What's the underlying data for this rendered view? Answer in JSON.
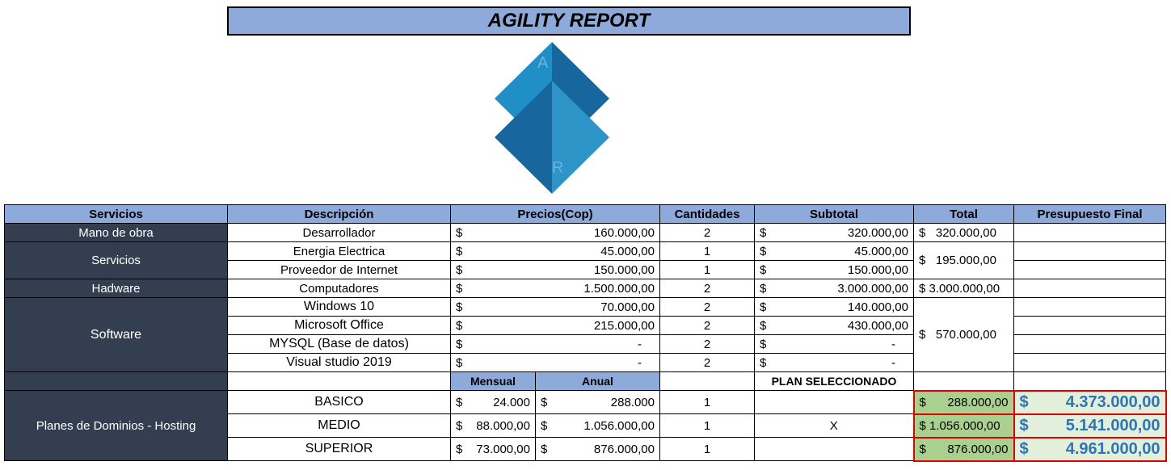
{
  "title": "AGILITY REPORT",
  "logo": {
    "letters": [
      "A",
      "R"
    ],
    "colors": [
      "#1f8fc6",
      "#17669d",
      "#2c94c7"
    ]
  },
  "headers": [
    "Servicios",
    "Descripción",
    "Precios(Cop)",
    "Cantidades",
    "Subtotal",
    "Total",
    "Presupuesto Final"
  ],
  "rows": [
    {
      "desc": "Desarrollador",
      "price": "160.000,00",
      "qty": "2",
      "sub": "320.000,00"
    },
    {
      "desc": "Energia Electrica",
      "price": "45.000,00",
      "qty": "1",
      "sub": "45.000,00"
    },
    {
      "desc": "Proveedor de Internet",
      "price": "150.000,00",
      "qty": "1",
      "sub": "150.000,00"
    },
    {
      "desc": "Computadores",
      "price": "1.500.000,00",
      "qty": "2",
      "sub": "3.000.000,00"
    },
    {
      "desc": "Windows 10",
      "price": "70.000,00",
      "qty": "2",
      "sub": "140.000,00"
    },
    {
      "desc": "Microsoft Office",
      "price": "215.000,00",
      "qty": "2",
      "sub": "430.000,00"
    },
    {
      "desc": "MYSQL (Base de datos)",
      "price": "-",
      "qty": "2",
      "sub": "-"
    },
    {
      "desc": "Visual studio 2019",
      "price": "-",
      "qty": "2",
      "sub": "-"
    }
  ],
  "categories": {
    "mano": "Mano de obra",
    "servicios": "Servicios",
    "hadware": "Hadware",
    "software": "Software",
    "planes": "Planes de Dominios - Hosting"
  },
  "totals": {
    "mano": "320.000,00",
    "servicios": "195.000,00",
    "hadware": "3.000.000,00",
    "software": "570.000,00"
  },
  "currency": "$",
  "plan_headers": {
    "mensual": "Mensual",
    "anual": "Anual",
    "seleccionado": "PLAN SELECCIONADO"
  },
  "plans": [
    {
      "name": "BASICO",
      "mensual": "24.000",
      "anual": "288.000",
      "qty": "1",
      "sel": "",
      "total": "288.000,00",
      "final": "4.373.000,00"
    },
    {
      "name": "MEDIO",
      "mensual": "88.000,00",
      "anual": "1.056.000,00",
      "qty": "1",
      "sel": "X",
      "total": "1.056.000,00",
      "final": "5.141.000,00"
    },
    {
      "name": "SUPERIOR",
      "mensual": "73.000,00",
      "anual": "876.000,00",
      "qty": "1",
      "sel": "",
      "total": "876.000,00",
      "final": "4.961.000,00"
    }
  ]
}
